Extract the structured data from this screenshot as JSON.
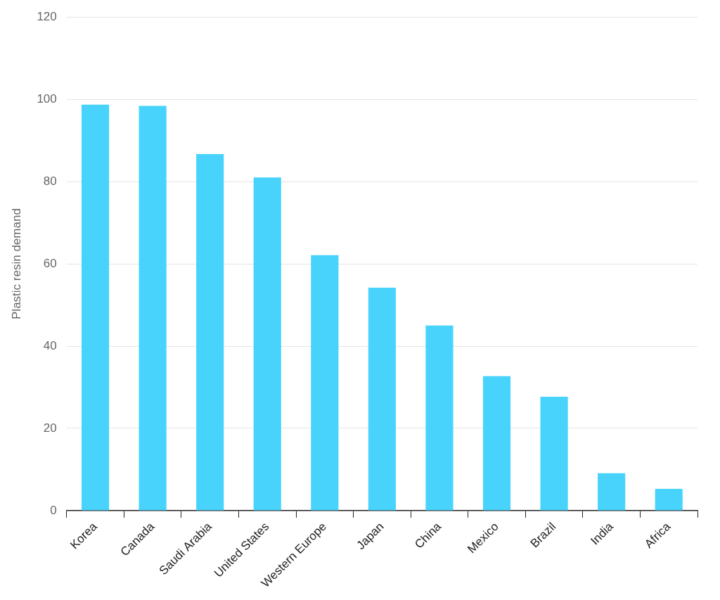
{
  "chart_data": {
    "type": "bar",
    "ylabel": "Plastic resin demand",
    "categories": [
      "Korea",
      "Canada",
      "Saudi Arabia",
      "United States",
      "Western Europe",
      "Japan",
      "China",
      "Mexico",
      "Brazil",
      "India",
      "Africa"
    ],
    "values": [
      98.7,
      98.4,
      86.7,
      81,
      62.1,
      54.2,
      45,
      32.7,
      27.7,
      9.1,
      5.3
    ],
    "color": "#48d3fd",
    "ylim": [
      0,
      120
    ],
    "yticks": [
      0,
      20,
      40,
      60,
      80,
      100,
      120
    ],
    "grid": true
  }
}
